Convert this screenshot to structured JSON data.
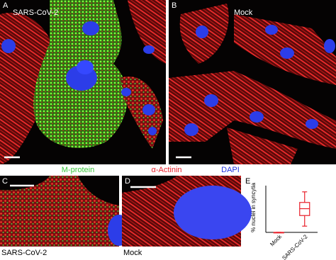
{
  "panels": [
    {
      "letter": "A",
      "label": "SARS-CoV-2"
    },
    {
      "letter": "B",
      "label": "Mock"
    },
    {
      "letter": "C",
      "caption": "SARS-CoV-2"
    },
    {
      "letter": "D",
      "caption": "Mock"
    },
    {
      "letter": "E"
    }
  ],
  "legend": [
    {
      "text": "M-protein",
      "color": "#39c43a"
    },
    {
      "text": "α-Actinin",
      "color": "#e8202a"
    },
    {
      "text": "DAPI",
      "color": "#2233dd"
    }
  ],
  "chart_data": {
    "type": "box",
    "ylabel": "% nuclei in syncytia",
    "categories": [
      "Mock",
      "SARS-CoV-2"
    ],
    "min": [
      0,
      10
    ],
    "q1": [
      0,
      27
    ],
    "median": [
      0,
      38
    ],
    "q3": [
      0,
      48
    ],
    "max": [
      0,
      65
    ],
    "color": "#e8202a",
    "ylim": [
      0,
      75
    ]
  }
}
